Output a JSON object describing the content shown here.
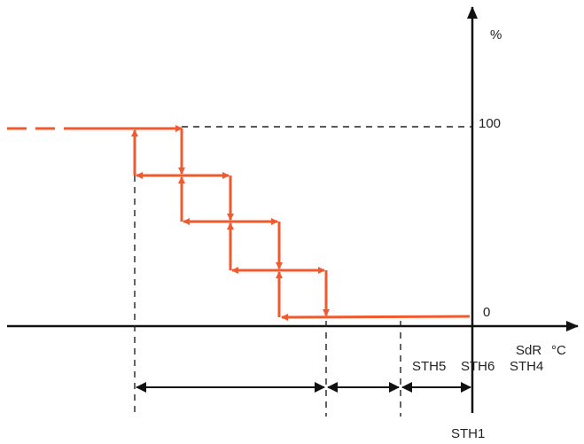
{
  "axis": {
    "y_unit": "%",
    "y_top": "100",
    "y_zero": "0",
    "x_label": "SdR",
    "x_unit": "°C"
  },
  "thresholds": [
    "STH5",
    "STH6",
    "STH4",
    "STH1"
  ]
}
